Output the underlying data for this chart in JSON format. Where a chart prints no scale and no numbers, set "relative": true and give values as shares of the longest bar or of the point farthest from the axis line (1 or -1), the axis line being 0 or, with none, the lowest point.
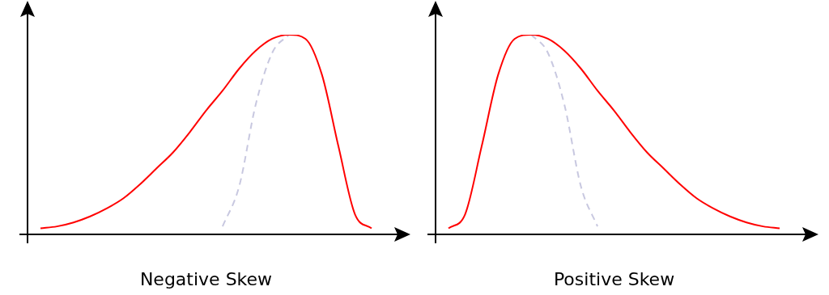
{
  "chart_data": [
    {
      "type": "line",
      "xlabel": "Negative Skew",
      "relative": true,
      "marker": "none",
      "categories": [
        null,
        null,
        null,
        null,
        null,
        null,
        null,
        null,
        null,
        null,
        null,
        null,
        null,
        null,
        null,
        null,
        null,
        null,
        null,
        null,
        null
      ],
      "series": [
        {
          "color": "#ff0000",
          "line_style": "solid",
          "values": [
            0.03,
            0.04,
            0.06,
            0.09,
            0.13,
            0.18,
            0.25,
            0.33,
            0.41,
            0.51,
            0.62,
            0.72,
            0.83,
            0.92,
            0.98,
            1.0,
            0.98,
            0.8,
            0.44,
            0.1,
            0.03
          ]
        },
        {
          "color": "#c8c8e0",
          "line_style": "dashed",
          "values": [
            null,
            null,
            null,
            null,
            null,
            null,
            null,
            null,
            null,
            null,
            null,
            0.04,
            0.24,
            0.65,
            0.91,
            1.0,
            null,
            null,
            null,
            null,
            null
          ]
        }
      ]
    },
    {
      "type": "line",
      "xlabel": "Positive Skew",
      "relative": true,
      "marker": "none",
      "categories": [
        null,
        null,
        null,
        null,
        null,
        null,
        null,
        null,
        null,
        null,
        null,
        null,
        null,
        null,
        null,
        null,
        null,
        null,
        null,
        null,
        null
      ],
      "series": [
        {
          "color": "#ff0000",
          "line_style": "solid",
          "values": [
            0.03,
            0.1,
            0.44,
            0.8,
            0.98,
            1.0,
            0.98,
            0.92,
            0.83,
            0.72,
            0.62,
            0.51,
            0.41,
            0.33,
            0.25,
            0.18,
            0.13,
            0.09,
            0.06,
            0.04,
            0.03
          ]
        },
        {
          "color": "#c8c8e0",
          "line_style": "dashed",
          "values": [
            null,
            null,
            null,
            null,
            null,
            1.0,
            0.91,
            0.65,
            0.24,
            0.04,
            null,
            null,
            null,
            null,
            null,
            null,
            null,
            null,
            null,
            null,
            null
          ]
        }
      ]
    }
  ]
}
